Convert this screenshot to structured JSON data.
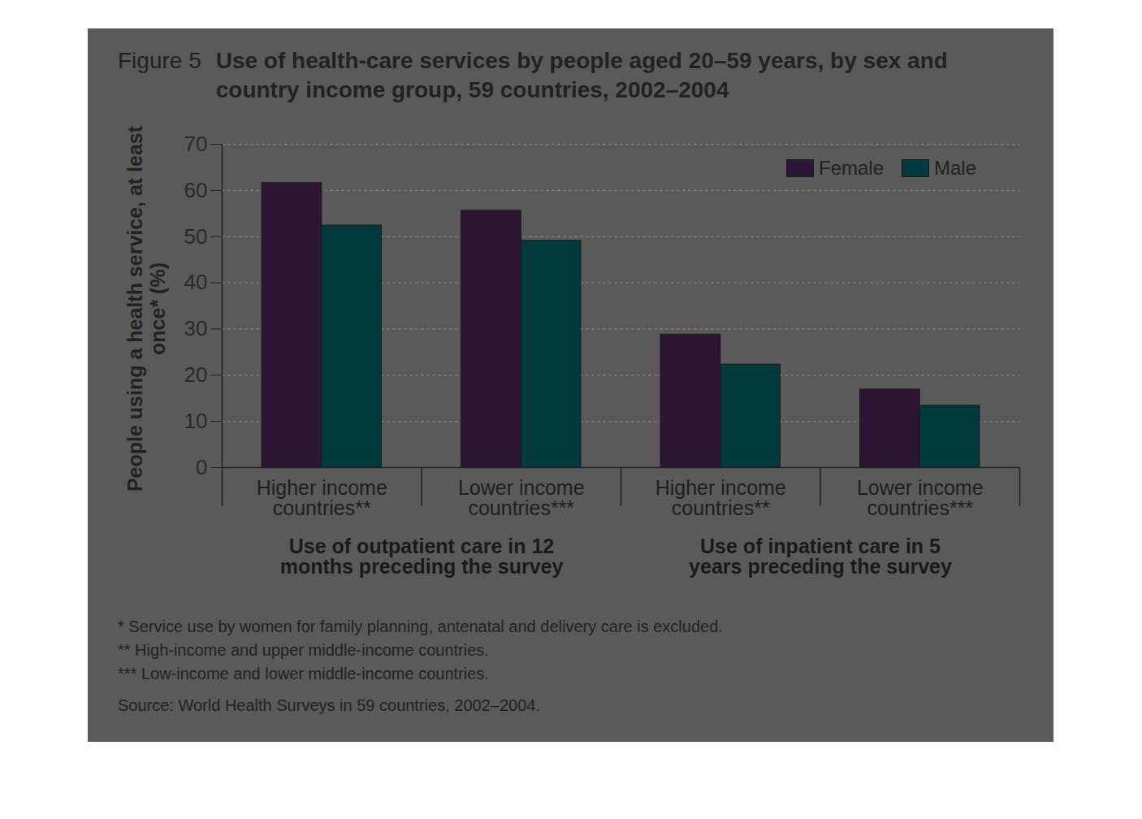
{
  "chart_data": {
    "type": "bar",
    "figure_label": "Figure 5",
    "title": "Use of health-care services by people aged 20–59 years, by sex and country income group, 59 countries, 2002–2004",
    "y_label": "People using a health service, at least once* (%)",
    "categories": [
      "Higher income countries**",
      "Lower income countries***",
      "Higher income countries**",
      "Lower income countries***"
    ],
    "groups": [
      {
        "label": "Use of outpatient care in 12 months preceding the survey",
        "size": 2
      },
      {
        "label": "Use of inpatient care in 5 years preceding the survey",
        "size": 2
      }
    ],
    "series": [
      {
        "name": "Female",
        "color": "#2d1633",
        "values": [
          61.6,
          55.6,
          28.8,
          16.9
        ]
      },
      {
        "name": "Male",
        "color": "#003a3c",
        "values": [
          52.4,
          49.1,
          22.3,
          13.4
        ]
      }
    ],
    "ylim": [
      0,
      70
    ],
    "yticks": [
      0,
      10,
      20,
      30,
      40,
      50,
      60,
      70
    ],
    "grid": true,
    "legend": "top-right",
    "notes": [
      "* Service use by women for family planning, antenatal and delivery care is excluded.",
      "** High-income and upper middle-income countries.",
      "*** Low-income and lower middle-income countries."
    ],
    "source": "Source: World Health Surveys in 59 countries, 2002–2004."
  }
}
